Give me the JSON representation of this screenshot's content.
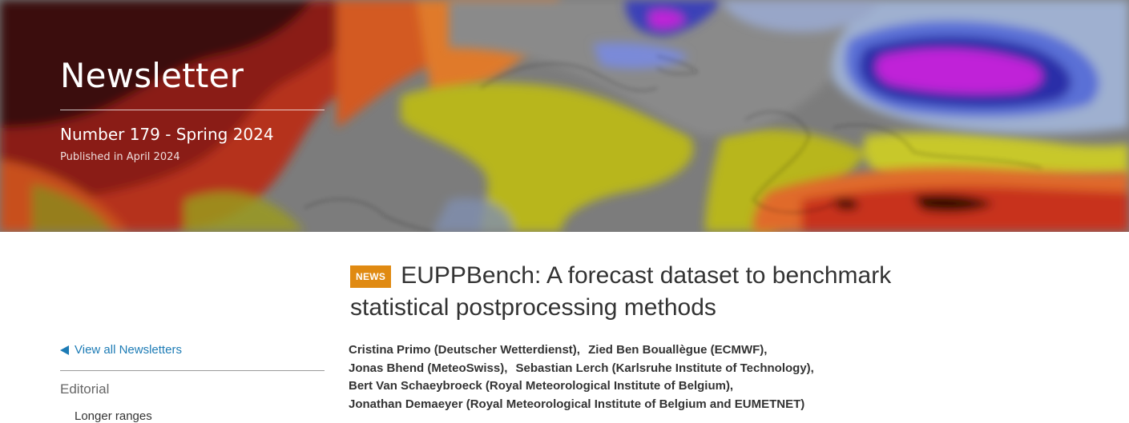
{
  "hero": {
    "title": "Newsletter",
    "issue": "Number 179 - Spring 2024",
    "published": "Published in April 2024"
  },
  "sidebar": {
    "view_all_label": "View all Newsletters",
    "section_label": "Editorial",
    "subitem_label": "Longer ranges"
  },
  "article": {
    "badge": "NEWS",
    "title": "EUPPBench: A forecast dataset to benchmark statistical postprocessing methods",
    "authors": [
      "Cristina Primo (Deutscher Wetterdienst),",
      "Zied Ben Bouallègue (ECMWF),",
      "Jonas Bhend (MeteoSwiss),",
      "Sebastian Lerch (Karlsruhe Institute of Technology),",
      "Bert Van Schaeybroeck (Royal Meteorological Institute of Belgium),",
      "Jonathan Demaeyer (Royal Meteorological Institute of Belgium and EUMETNET)"
    ]
  },
  "colors": {
    "accent_link": "#1c7bb5",
    "badge": "#e08a12"
  }
}
